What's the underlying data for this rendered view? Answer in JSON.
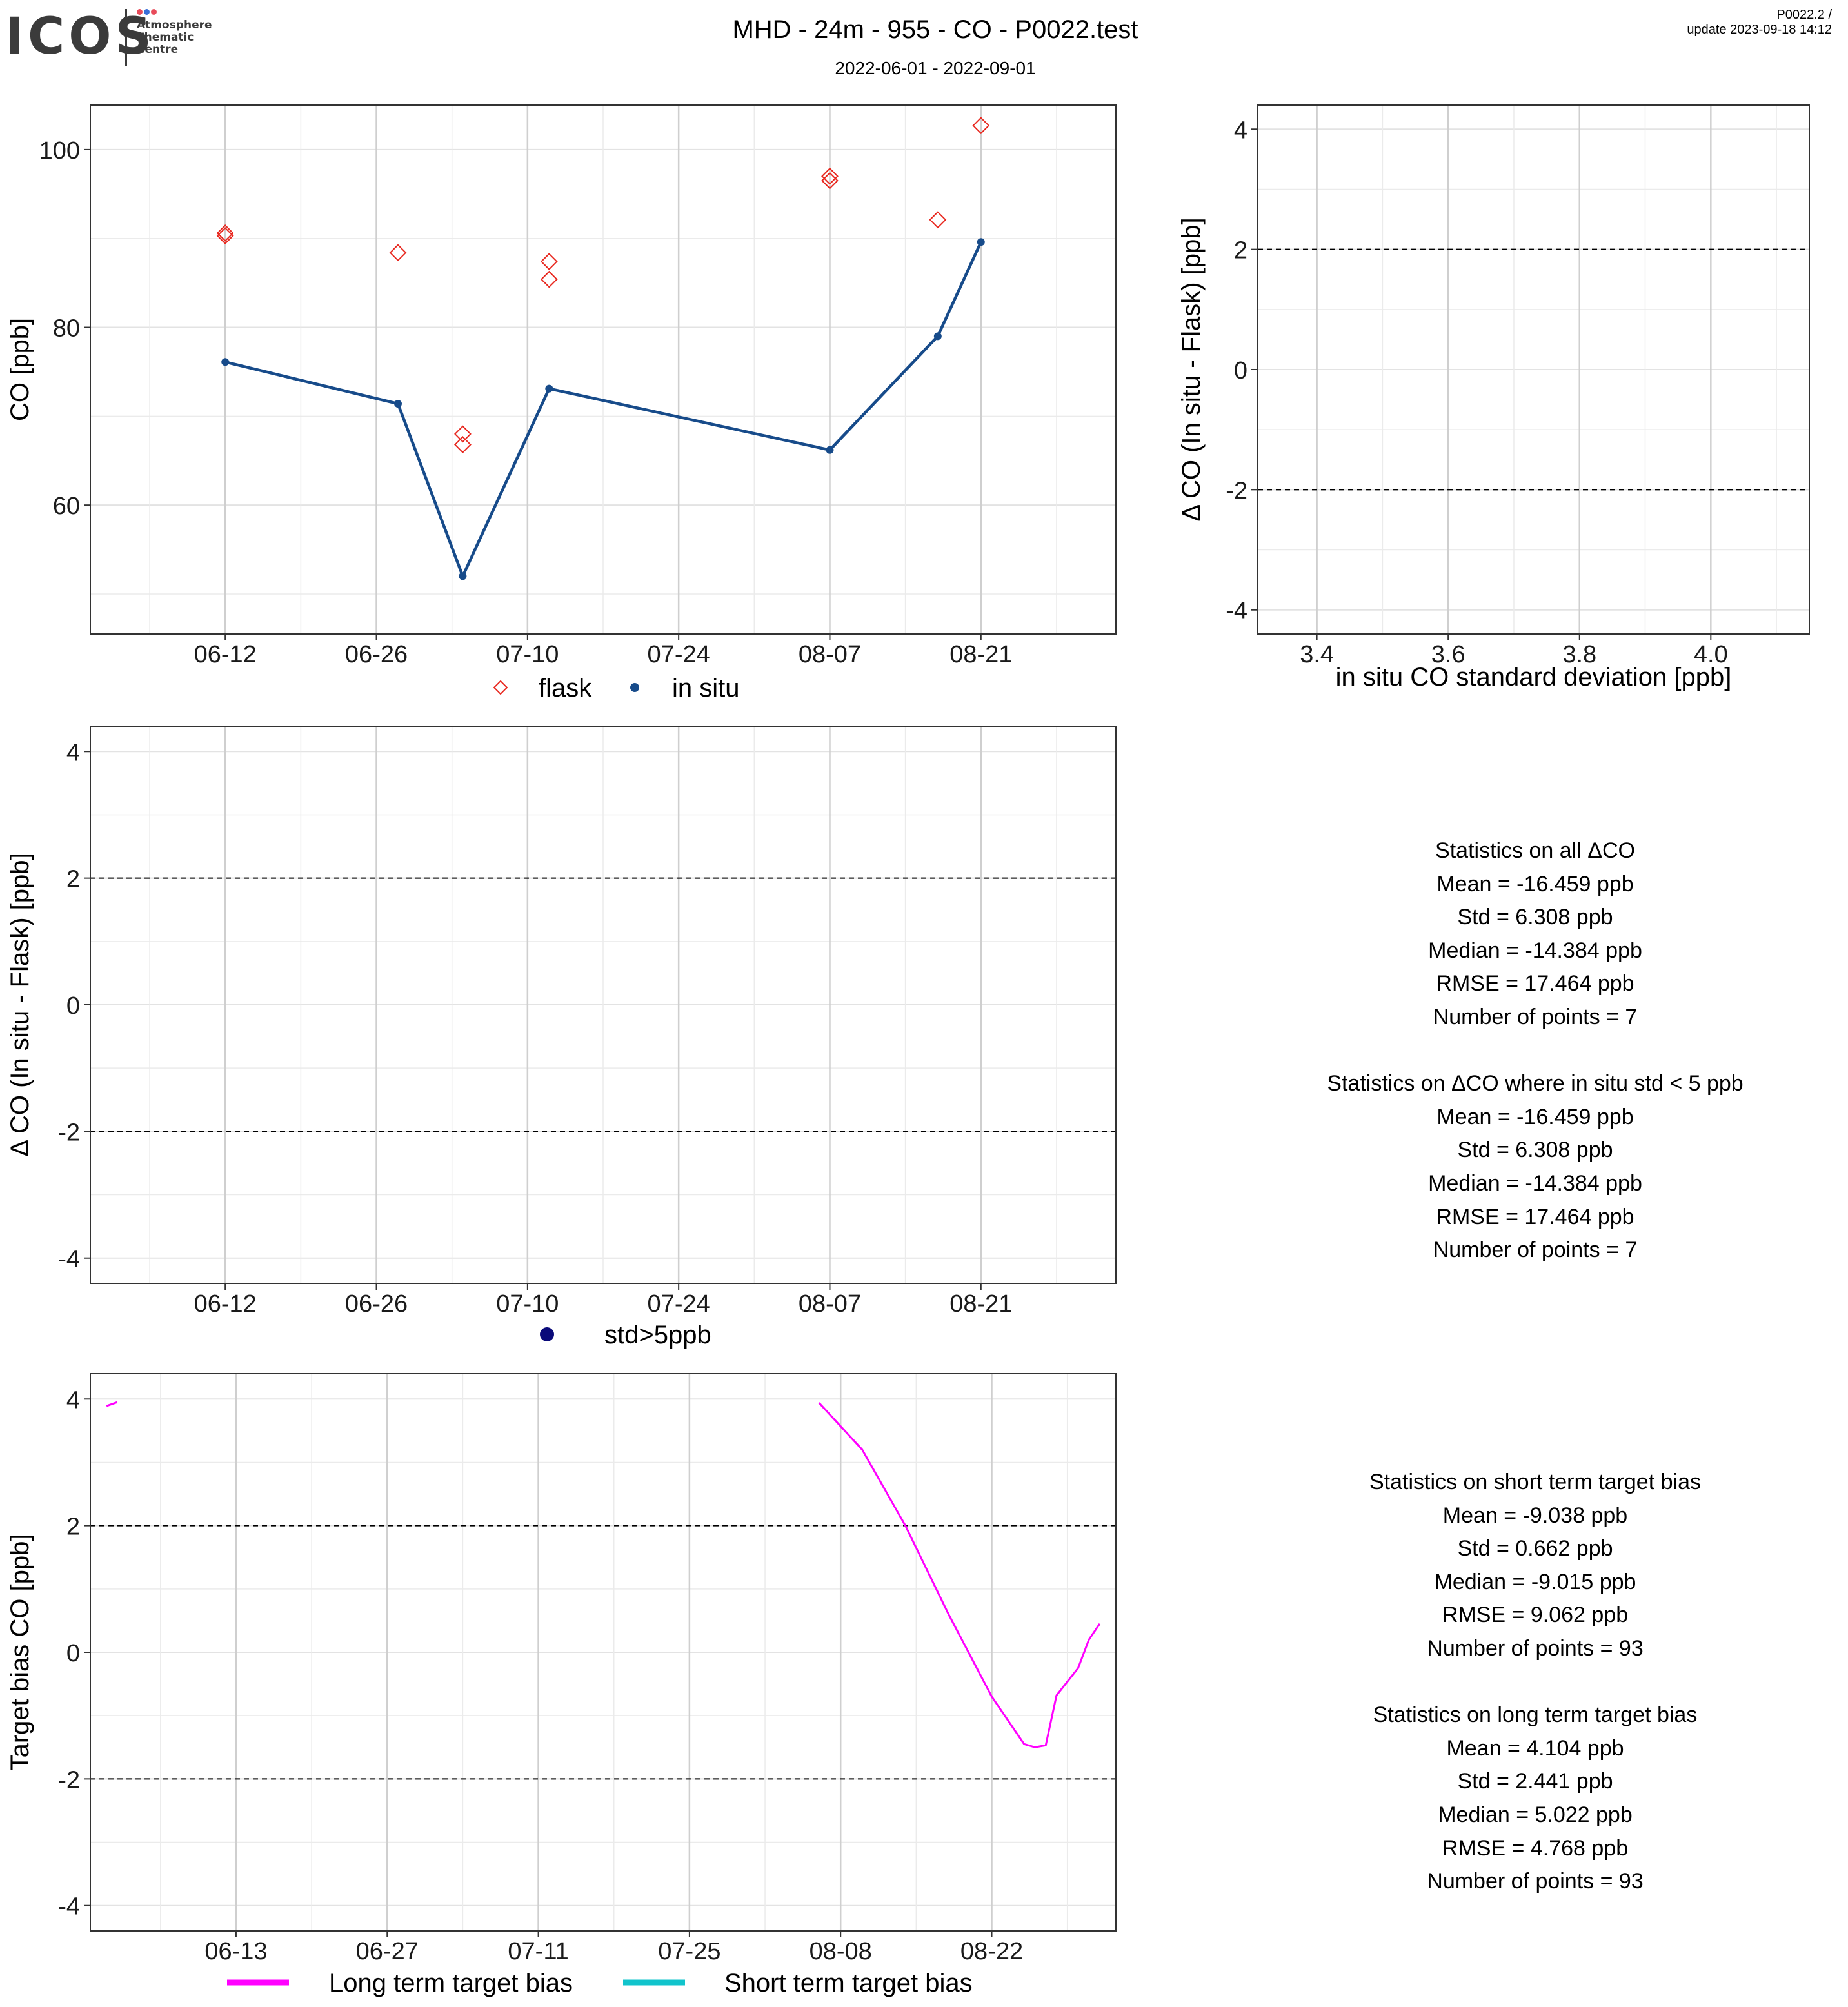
{
  "header": {
    "logo_text": "ICOS",
    "logo_sub": [
      "Atmosphere",
      "Thematic",
      "Centre"
    ],
    "title": "MHD - 24m - 955 - CO - P0022.test",
    "subtitle": "2022-06-01 - 2022-09-01",
    "version_line1": "P0022.2 /",
    "version_line2": "update  2023-09-18 14:12",
    "colors": {
      "logo_dot_1": "#e84b5a",
      "logo_dot_2": "#3a6fd8",
      "logo_dot_3": "#e84b5a"
    }
  },
  "chart_data": [
    {
      "id": "co_timeseries",
      "type": "line",
      "xlabel": "",
      "ylabel": "CO [ppb]",
      "x_ticks": [
        "06-12",
        "06-26",
        "07-10",
        "07-24",
        "08-07",
        "08-21"
      ],
      "ylim": [
        45.5,
        105
      ],
      "yticks": [
        60,
        80,
        100
      ],
      "grid": true,
      "legend": {
        "position": "bottom",
        "entries": [
          {
            "label": "flask",
            "marker": "open-diamond",
            "color": "#e8281f"
          },
          {
            "label": "in situ",
            "marker": "filled-circle",
            "color": "#174b8a"
          }
        ]
      },
      "series": [
        {
          "name": "flask",
          "marker": "open-diamond",
          "color": "#e8281f",
          "points": [
            {
              "x": "06-12",
              "y": 90.3
            },
            {
              "x": "06-12",
              "y": 90.6
            },
            {
              "x": "06-28",
              "y": 88.4
            },
            {
              "x": "07-04",
              "y": 68.0
            },
            {
              "x": "07-04",
              "y": 66.8
            },
            {
              "x": "07-12",
              "y": 87.4
            },
            {
              "x": "07-12",
              "y": 85.4
            },
            {
              "x": "08-07",
              "y": 97.0
            },
            {
              "x": "08-07",
              "y": 96.5
            },
            {
              "x": "08-17",
              "y": 92.1
            },
            {
              "x": "08-21",
              "y": 102.7
            }
          ]
        },
        {
          "name": "in situ",
          "marker": "filled-circle",
          "color": "#174b8a",
          "points": [
            {
              "x": "06-12",
              "y": 76.1
            },
            {
              "x": "06-28",
              "y": 71.4
            },
            {
              "x": "07-04",
              "y": 52.0
            },
            {
              "x": "07-12",
              "y": 73.1
            },
            {
              "x": "08-07",
              "y": 66.2
            },
            {
              "x": "08-17",
              "y": 79.0
            },
            {
              "x": "08-21",
              "y": 89.6
            }
          ]
        }
      ]
    },
    {
      "id": "delta_vs_std",
      "type": "scatter",
      "xlabel": "in situ CO standard deviation [ppb]",
      "ylabel": "Δ CO (In situ - Flask) [ppb]",
      "xlim": [
        3.31,
        4.15
      ],
      "xticks": [
        "3.4",
        "3.6",
        "3.8",
        "4.0"
      ],
      "ylim": [
        -4.4,
        4.4
      ],
      "yticks": [
        -4,
        -2,
        0,
        2,
        4
      ],
      "reference_lines": [
        2,
        -2
      ],
      "grid": true,
      "series": []
    },
    {
      "id": "delta_timeseries",
      "type": "scatter",
      "xlabel": "",
      "ylabel": "Δ CO (In situ - Flask) [ppb]",
      "x_ticks": [
        "06-12",
        "06-26",
        "07-10",
        "07-24",
        "08-07",
        "08-21"
      ],
      "ylim": [
        -4.4,
        4.4
      ],
      "yticks": [
        -4,
        -2,
        0,
        2,
        4
      ],
      "reference_lines": [
        2,
        -2
      ],
      "grid": true,
      "legend": {
        "position": "bottom",
        "entries": [
          {
            "label": "std>5ppb",
            "marker": "filled-circle",
            "color": "#0a0a7a"
          }
        ]
      },
      "series": []
    },
    {
      "id": "target_bias",
      "type": "line",
      "xlabel": "",
      "ylabel": "Target bias CO [ppb]",
      "x_ticks": [
        "06-13",
        "06-27",
        "07-11",
        "07-25",
        "08-08",
        "08-22"
      ],
      "ylim": [
        -4.4,
        4.4
      ],
      "yticks": [
        -4,
        -2,
        0,
        2,
        4
      ],
      "reference_lines": [
        2,
        -2
      ],
      "grid": true,
      "legend": {
        "position": "bottom",
        "entries": [
          {
            "label": "Long term target bias",
            "color": "#ff00ff"
          },
          {
            "label": "Short term target bias",
            "color": "#11c4cc"
          }
        ]
      },
      "series": [
        {
          "name": "Long term target bias",
          "color": "#ff00ff",
          "segments": [
            [
              {
                "x": "06-01",
                "y": 3.89
              },
              {
                "x": "06-02",
                "y": 3.95
              }
            ],
            [
              {
                "x": "08-06",
                "y": 3.94
              },
              {
                "x": "08-10",
                "y": 3.2
              },
              {
                "x": "08-14",
                "y": 2.0
              },
              {
                "x": "08-18",
                "y": 0.6
              },
              {
                "x": "08-22",
                "y": -0.7
              },
              {
                "x": "08-25",
                "y": -1.45
              },
              {
                "x": "08-26",
                "y": -1.5
              },
              {
                "x": "08-27",
                "y": -1.47
              },
              {
                "x": "08-28",
                "y": -0.68
              },
              {
                "x": "08-30",
                "y": -0.25
              },
              {
                "x": "08-31",
                "y": 0.2
              },
              {
                "x": "09-01",
                "y": 0.45
              }
            ]
          ]
        },
        {
          "name": "Short term target bias",
          "color": "#11c4cc",
          "segments": []
        }
      ]
    }
  ],
  "stats_delta": [
    "Statistics on all ΔCO",
    "Mean =  -16.459 ppb",
    "Std =  6.308 ppb",
    "Median =  -14.384 ppb",
    "RMSE =  17.464 ppb",
    "Number of points =  7",
    "",
    "Statistics on ΔCO where in situ std < 5 ppb",
    "Mean =  -16.459 ppb",
    "Std =  6.308 ppb",
    "Median =  -14.384 ppb",
    "RMSE =  17.464 ppb",
    "Number of points =  7"
  ],
  "stats_bias": [
    "Statistics on short term target bias",
    "Mean =  -9.038 ppb",
    "Std =  0.662 ppb",
    "Median =  -9.015 ppb",
    "RMSE =  9.062 ppb",
    "Number of points =  93",
    "",
    "Statistics on long term target bias",
    "Mean =  4.104 ppb",
    "Std =  2.441 ppb",
    "Median =  5.022 ppb",
    "RMSE =  4.768 ppb",
    "Number of points =  93"
  ]
}
